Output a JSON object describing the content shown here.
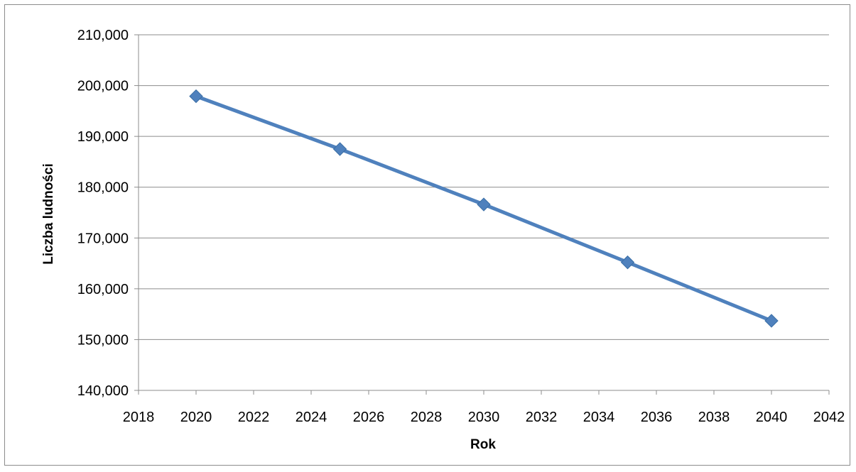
{
  "chart_data": {
    "type": "line",
    "title": "",
    "xlabel": "Rok",
    "ylabel": "Liczba ludności",
    "xlim": [
      2018,
      2042
    ],
    "ylim": [
      140000,
      210000
    ],
    "x_ticks": [
      2018,
      2020,
      2022,
      2024,
      2026,
      2028,
      2030,
      2032,
      2034,
      2036,
      2038,
      2040,
      2042
    ],
    "y_ticks": [
      140000,
      150000,
      160000,
      170000,
      180000,
      190000,
      200000,
      210000
    ],
    "x_tick_labels": [
      "2018",
      "2020",
      "2022",
      "2024",
      "2026",
      "2028",
      "2030",
      "2032",
      "2034",
      "2036",
      "2038",
      "2040",
      "2042"
    ],
    "y_tick_labels": [
      "140,000",
      "150,000",
      "160,000",
      "170,000",
      "180,000",
      "190,000",
      "200,000",
      "210,000"
    ],
    "grid": "horizontal",
    "legend": "none",
    "series": [
      {
        "x": [
          2020,
          2025,
          2030,
          2035,
          2040
        ],
        "values": [
          197900,
          187500,
          176600,
          165200,
          153700
        ],
        "color": "#4f81bd",
        "marker": "diamond"
      }
    ]
  }
}
